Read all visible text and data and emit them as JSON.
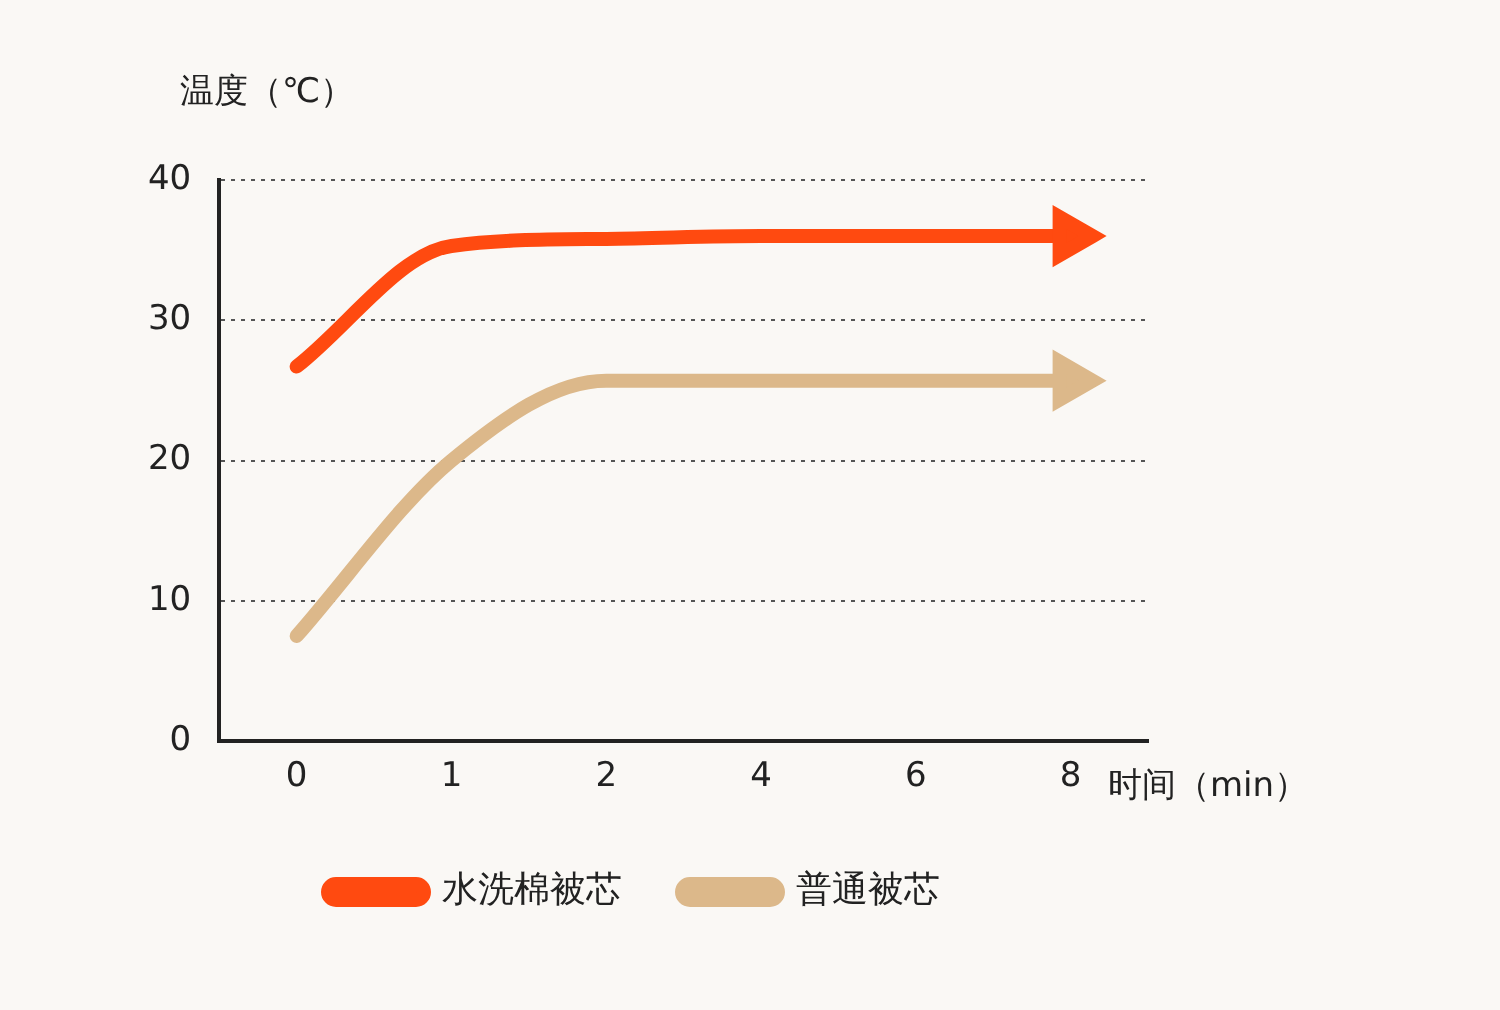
{
  "chart_data": {
    "type": "line",
    "xlabel": "时间（min）",
    "ylabel": "温度（℃）",
    "categories": [
      "0",
      "1",
      "2",
      "4",
      "6",
      "8"
    ],
    "series": [
      {
        "name": "水洗棉被芯",
        "color": "#ff4a10",
        "values": [
          26.7,
          35.3,
          35.8,
          36,
          36,
          36
        ]
      },
      {
        "name": "普通被芯",
        "color": "#dcb88a",
        "values": [
          7.5,
          20,
          25.7,
          25.7,
          25.7,
          25.7
        ]
      }
    ],
    "ylim": [
      0,
      40
    ],
    "yticks": [
      0,
      10,
      20,
      30,
      40
    ],
    "grid": "y",
    "legend": "bottom"
  }
}
